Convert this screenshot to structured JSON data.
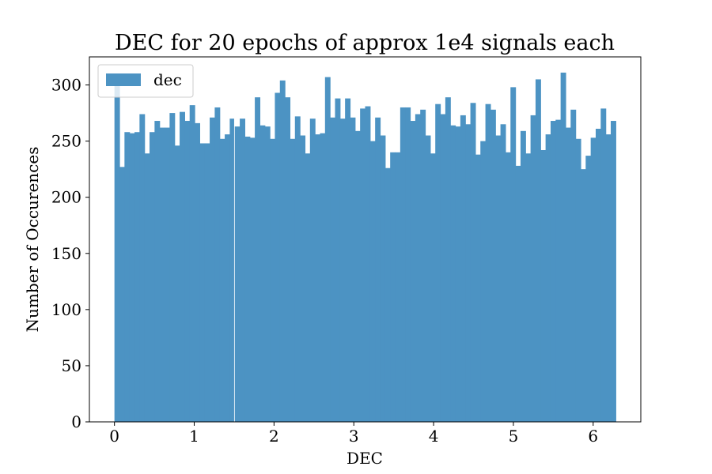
{
  "chart_data": {
    "type": "bar",
    "title": "DEC for 20 epochs of approx 1e4 signals each",
    "xlabel": "DEC",
    "ylabel": "Number of Occurences",
    "xlim": [
      -0.314,
      6.597
    ],
    "ylim": [
      0,
      325
    ],
    "x_ticks": [
      "0",
      "1",
      "2",
      "3",
      "4",
      "5",
      "6"
    ],
    "y_ticks": [
      "0",
      "50",
      "100",
      "150",
      "200",
      "250",
      "300"
    ],
    "grid": false,
    "legend": {
      "position": "top-left",
      "entries": [
        "dec"
      ]
    },
    "bin_range": [
      0,
      6.283
    ],
    "bin_gap_after_index": 23,
    "series": [
      {
        "name": "dec",
        "color": "#4c93c3",
        "values": [
          306,
          227,
          258,
          257,
          258,
          274,
          239,
          258,
          268,
          262,
          262,
          275,
          246,
          276,
          268,
          282,
          266,
          248,
          248,
          271,
          280,
          252,
          256,
          270,
          263,
          270,
          254,
          253,
          289,
          264,
          263,
          252,
          293,
          304,
          289,
          252,
          272,
          255,
          239,
          270,
          256,
          257,
          307,
          271,
          288,
          270,
          288,
          271,
          259,
          279,
          281,
          250,
          271,
          255,
          226,
          240,
          240,
          280,
          280,
          268,
          274,
          278,
          255,
          239,
          283,
          274,
          289,
          264,
          263,
          273,
          265,
          284,
          238,
          250,
          283,
          278,
          255,
          265,
          240,
          298,
          228,
          259,
          239,
          273,
          305,
          242,
          256,
          268,
          269,
          311,
          262,
          278,
          252,
          225,
          237,
          253,
          261,
          279,
          256,
          268
        ]
      }
    ]
  }
}
